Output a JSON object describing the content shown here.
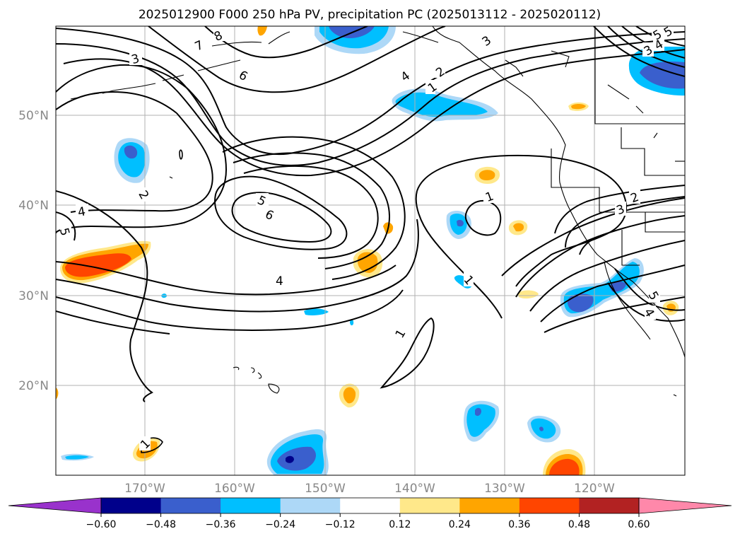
{
  "title": "2025012900 F000 250 hPa PV, precipitation PC (2025013112 - 2025020112)",
  "lat_labels": [
    "50°N",
    "40°N",
    "30°N",
    "20°N"
  ],
  "lon_labels": [
    "170°W",
    "160°W",
    "150°W",
    "140°W",
    "130°W",
    "120°W"
  ],
  "contour_labels": [
    "1",
    "2",
    "3",
    "4",
    "5",
    "6",
    "7",
    "8"
  ],
  "colorbar": {
    "tick_labels": [
      "−0.60",
      "−0.48",
      "−0.36",
      "−0.24",
      "−0.12",
      "0.12",
      "0.24",
      "0.36",
      "0.48",
      "0.60"
    ],
    "colors": [
      "#9932cc",
      "#00008b",
      "#3a5fcd",
      "#00bfff",
      "#add8f7",
      "#ffffff",
      "#ffe88a",
      "#ffa500",
      "#ff4500",
      "#b22222",
      "#ff88aa"
    ]
  },
  "colors": {
    "neg_strong": "#3a5fcd",
    "neg_mid": "#00bfff",
    "neg_weak": "#add8f7",
    "neg_extreme": "#00008b",
    "pos_weak": "#ffe88a",
    "pos_mid": "#ffa500",
    "pos_strong": "#ff4500",
    "grid": "#b0b0b0"
  }
}
